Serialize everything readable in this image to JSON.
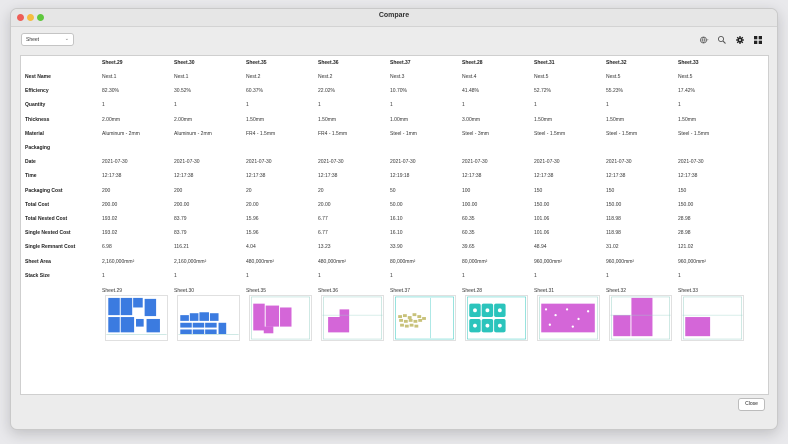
{
  "window": {
    "title": "Compare"
  },
  "toolbar": {
    "sheet_select": "Sheet",
    "icons": [
      "globe-icon",
      "zoom-icon",
      "gear-icon",
      "grid-icon"
    ]
  },
  "table": {
    "columns": [
      "Sheet.29",
      "Sheet.30",
      "Sheet.35",
      "Sheet.36",
      "Sheet.37",
      "Sheet.28",
      "Sheet.31",
      "Sheet.32",
      "Sheet.33"
    ],
    "rows": [
      {
        "label": "Nest Name",
        "values": [
          "Nest.1",
          "Nest.1",
          "Nest.2",
          "Nest.2",
          "Nest.3",
          "Nest.4",
          "Nest.5",
          "Nest.5",
          "Nest.5"
        ]
      },
      {
        "label": "Efficiency",
        "values": [
          "82.30%",
          "30.52%",
          "60.37%",
          "22.02%",
          "10.70%",
          "41.48%",
          "52.72%",
          "55.23%",
          "17.42%"
        ]
      },
      {
        "label": "Quantity",
        "values": [
          "1",
          "1",
          "1",
          "1",
          "1",
          "1",
          "1",
          "1",
          "1"
        ]
      },
      {
        "label": "Thickness",
        "values": [
          "2.00mm",
          "2.00mm",
          "1.50mm",
          "1.50mm",
          "1.00mm",
          "3.00mm",
          "1.50mm",
          "1.50mm",
          "1.50mm"
        ]
      },
      {
        "label": "Material",
        "values": [
          "Aluminum - 2mm",
          "Aluminum - 2mm",
          "FR4 - 1.5mm",
          "FR4 - 1.5mm",
          "Steel - 1mm",
          "Steel - 3mm",
          "Steel - 1.5mm",
          "Steel - 1.5mm",
          "Steel - 1.5mm"
        ]
      },
      {
        "label": "Packaging",
        "values": [
          "",
          "",
          "",
          "",
          "",
          "",
          "",
          "",
          ""
        ]
      },
      {
        "label": "Date",
        "values": [
          "2021-07-30",
          "2021-07-30",
          "2021-07-30",
          "2021-07-30",
          "2021-07-30",
          "2021-07-30",
          "2021-07-30",
          "2021-07-30",
          "2021-07-30"
        ]
      },
      {
        "label": "Time",
        "values": [
          "12:17:38",
          "12:17:38",
          "12:17:38",
          "12:17:38",
          "12:19:18",
          "12:17:38",
          "12:17:38",
          "12:17:38",
          "12:17:38"
        ]
      },
      {
        "label": "Packaging Cost",
        "values": [
          "200",
          "200",
          "20",
          "20",
          "50",
          "100",
          "150",
          "150",
          "150"
        ]
      },
      {
        "label": "Total Cost",
        "values": [
          "200.00",
          "200.00",
          "20.00",
          "20.00",
          "50.00",
          "100.00",
          "150.00",
          "150.00",
          "150.00"
        ]
      },
      {
        "label": "Total Nested Cost",
        "values": [
          "193.02",
          "83.79",
          "15.96",
          "6.77",
          "16.10",
          "60.35",
          "101.06",
          "118.98",
          "28.98"
        ]
      },
      {
        "label": "Single Nested Cost",
        "values": [
          "193.02",
          "83.79",
          "15.96",
          "6.77",
          "16.10",
          "60.35",
          "101.06",
          "118.98",
          "28.98"
        ]
      },
      {
        "label": "Single Remnant Cost",
        "values": [
          "6.98",
          "116.21",
          "4.04",
          "13.23",
          "33.90",
          "39.65",
          "48.94",
          "31.02",
          "121.02"
        ]
      },
      {
        "label": "Sheet Area",
        "values": [
          "2,160,000mm²",
          "2,160,000mm²",
          "480,000mm²",
          "480,000mm²",
          "80,000mm²",
          "80,000mm²",
          "960,000mm²",
          "960,000mm²",
          "960,000mm²"
        ]
      },
      {
        "label": "Stack Size",
        "values": [
          "1",
          "1",
          "1",
          "1",
          "1",
          "1",
          "1",
          "1",
          "1"
        ]
      }
    ],
    "thumbnail_labels": [
      "Sheet.29",
      "Sheet.30",
      "Sheet.35",
      "Sheet.36",
      "Sheet.37",
      "Sheet.28",
      "Sheet.31",
      "Sheet.32",
      "Sheet.33"
    ]
  },
  "colors": {
    "blue_parts": "#3b7be0",
    "magenta_parts": "#d466d8",
    "teal_parts": "#2bc4bc",
    "olive_parts": "#c8c27a"
  },
  "footer": {
    "close_label": "Close"
  }
}
